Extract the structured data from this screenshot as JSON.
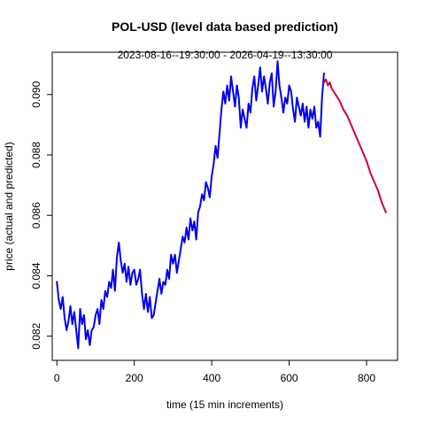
{
  "chart_data": {
    "type": "line",
    "title": "POL-USD (level data based prediction)",
    "subtitle": "2023-08-16--19:30:00  -  2026-04-19--13:30:00",
    "xlabel": "time (15 min increments)",
    "ylabel": "price (actual and predicted)",
    "xlim": [
      -12,
      880
    ],
    "ylim": [
      0.0812,
      0.0914
    ],
    "xticks": [
      0,
      200,
      400,
      600,
      800
    ],
    "yticks": [
      0.082,
      0.084,
      0.086,
      0.088,
      0.09
    ],
    "ytick_labels": [
      "0.082",
      "0.084",
      "0.086",
      "0.088",
      "0.090"
    ],
    "grid": false,
    "series": [
      {
        "color": "#0000ee",
        "x": [
          0,
          5,
          10,
          15,
          20,
          25,
          30,
          35,
          40,
          45,
          50,
          55,
          60,
          65,
          70,
          75,
          80,
          85,
          90,
          95,
          100,
          105,
          110,
          115,
          120,
          125,
          130,
          135,
          140,
          145,
          150,
          155,
          160,
          165,
          170,
          175,
          180,
          185,
          190,
          195,
          200,
          205,
          210,
          215,
          220,
          225,
          230,
          235,
          240,
          245,
          250,
          255,
          260,
          265,
          270,
          275,
          280,
          285,
          290,
          295,
          300,
          305,
          310,
          315,
          320,
          325,
          330,
          335,
          340,
          345,
          350,
          355,
          360,
          365,
          370,
          375,
          380,
          385,
          390,
          395,
          400,
          405,
          410,
          415,
          420,
          425,
          430,
          435,
          440,
          445,
          450,
          455,
          460,
          465,
          470,
          475,
          480,
          485,
          490,
          495,
          500,
          505,
          510,
          515,
          520,
          525,
          530,
          535,
          540,
          545,
          550,
          555,
          560,
          565,
          570,
          575,
          580,
          585,
          590,
          595,
          600,
          605,
          610,
          615,
          620,
          625,
          630,
          635,
          640,
          645,
          650,
          655,
          660,
          665,
          670,
          675,
          680,
          685,
          690
        ],
        "y": [
          0.0838,
          0.0832,
          0.0829,
          0.0833,
          0.0826,
          0.0822,
          0.0825,
          0.083,
          0.0824,
          0.0828,
          0.0822,
          0.0816,
          0.0829,
          0.0824,
          0.0827,
          0.0819,
          0.0822,
          0.0817,
          0.0822,
          0.0823,
          0.0827,
          0.0829,
          0.0824,
          0.0832,
          0.0829,
          0.0835,
          0.0833,
          0.0838,
          0.0836,
          0.0842,
          0.0835,
          0.0846,
          0.0851,
          0.0845,
          0.0841,
          0.0844,
          0.0838,
          0.0843,
          0.0837,
          0.0841,
          0.0842,
          0.0837,
          0.0839,
          0.0842,
          0.0834,
          0.0829,
          0.0834,
          0.0828,
          0.0833,
          0.0826,
          0.0827,
          0.0831,
          0.0835,
          0.0839,
          0.0834,
          0.0838,
          0.0837,
          0.0842,
          0.0839,
          0.0847,
          0.0844,
          0.0847,
          0.0841,
          0.0845,
          0.0849,
          0.0853,
          0.0851,
          0.0856,
          0.0852,
          0.0859,
          0.0855,
          0.0858,
          0.0852,
          0.0861,
          0.0863,
          0.0867,
          0.0865,
          0.0871,
          0.0869,
          0.0866,
          0.0873,
          0.0877,
          0.0883,
          0.0879,
          0.0887,
          0.0895,
          0.0901,
          0.0897,
          0.0903,
          0.0898,
          0.0906,
          0.0901,
          0.0896,
          0.0903,
          0.0899,
          0.0889,
          0.0895,
          0.0892,
          0.0889,
          0.0897,
          0.0894,
          0.0902,
          0.0906,
          0.0898,
          0.0903,
          0.0909,
          0.0901,
          0.0906,
          0.0902,
          0.0897,
          0.0904,
          0.0907,
          0.0896,
          0.0901,
          0.0911,
          0.0903,
          0.0899,
          0.0894,
          0.0899,
          0.0897,
          0.0903,
          0.0901,
          0.0895,
          0.0891,
          0.0899,
          0.0896,
          0.0893,
          0.0897,
          0.0891,
          0.0896,
          0.0889,
          0.0895,
          0.0892,
          0.0896,
          0.0889,
          0.0891,
          0.0886,
          0.0899,
          0.0907
        ]
      },
      {
        "color": "#cd0039",
        "x": [
          690,
          695,
          700,
          705,
          710,
          720,
          730,
          740,
          750,
          760,
          770,
          780,
          790,
          800,
          810,
          820,
          830,
          840,
          850
        ],
        "y": [
          0.0904,
          0.0905,
          0.0903,
          0.0904,
          0.0902,
          0.09,
          0.0898,
          0.0895,
          0.0893,
          0.089,
          0.0887,
          0.0884,
          0.0881,
          0.0878,
          0.0874,
          0.0871,
          0.0868,
          0.0864,
          0.0861
        ]
      }
    ]
  }
}
